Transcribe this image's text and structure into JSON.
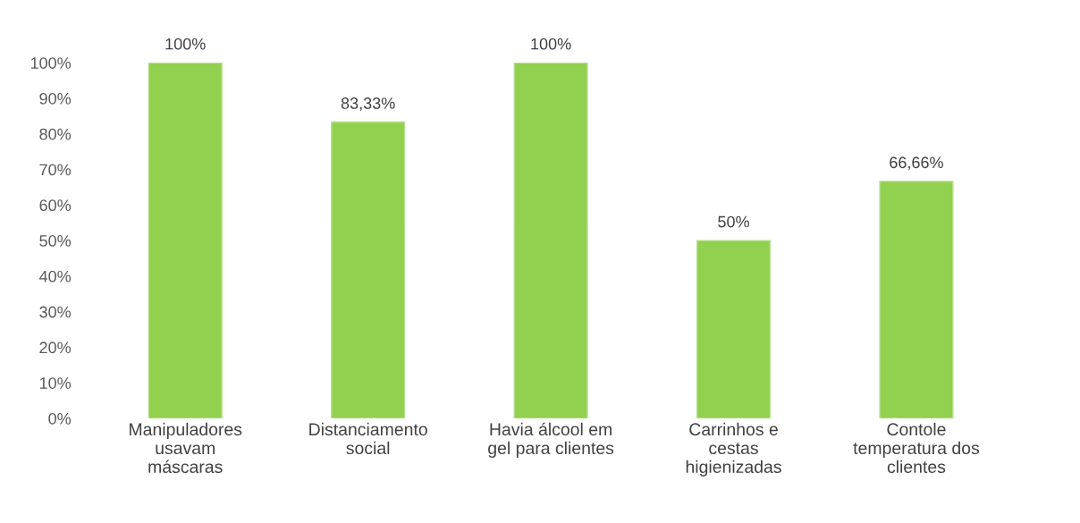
{
  "chart_data": {
    "type": "bar",
    "categories": [
      "Manipuladores\nusavam\nmáscaras",
      "Distanciamento\nsocial",
      "Havia álcool em\ngel para clientes",
      "Carrinhos e\ncestas\nhigienizadas",
      "Contole\ntemperatura dos\nclientes"
    ],
    "values": [
      100,
      83.33,
      100,
      50,
      66.66
    ],
    "value_labels": [
      "100%",
      "83,33%",
      "100%",
      "50%",
      "66,66%"
    ],
    "color": "#92d050",
    "ylim": [
      0,
      100
    ],
    "yticks": [
      {
        "value": 0,
        "label": "0%"
      },
      {
        "value": 10,
        "label": "10%"
      },
      {
        "value": 20,
        "label": "20%"
      },
      {
        "value": 30,
        "label": "30%"
      },
      {
        "value": 40,
        "label": "40%"
      },
      {
        "value": 50,
        "label": "50%"
      },
      {
        "value": 60,
        "label": "60%"
      },
      {
        "value": 70,
        "label": "70%"
      },
      {
        "value": 80,
        "label": "80%"
      },
      {
        "value": 90,
        "label": "90%"
      },
      {
        "value": 100,
        "label": "100%"
      }
    ],
    "grid": false,
    "legend": false
  }
}
